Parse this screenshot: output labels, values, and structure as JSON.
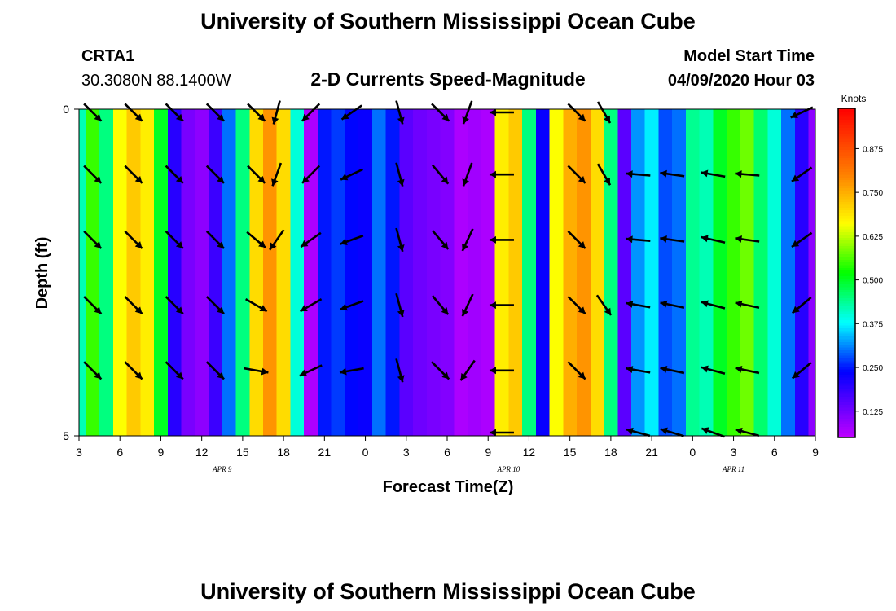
{
  "header": {
    "title": "University of Southern Mississippi Ocean Cube",
    "station": "CRTA1",
    "coords": "30.3080N 88.1400W",
    "product": "2-D Currents Speed-Magnitude",
    "model_label": "Model Start Time",
    "model_time": "04/09/2020 Hour 03"
  },
  "footer": {
    "title": "University of Southern Mississippi Ocean Cube"
  },
  "chart_data": {
    "type": "heatmap",
    "title": "2-D Currents Speed-Magnitude",
    "xlabel": "Forecast Time(Z)",
    "ylabel": "Depth (ft)",
    "units": "Knots",
    "x_hours": [
      3,
      4,
      5,
      6,
      7,
      8,
      9,
      10,
      11,
      12,
      13,
      14,
      15,
      16,
      17,
      18,
      19,
      20,
      21,
      22,
      23,
      24,
      25,
      26,
      27,
      28,
      29,
      30,
      31,
      32,
      33,
      34,
      35,
      36,
      37,
      38,
      39,
      40,
      41,
      42,
      43,
      44,
      45,
      46,
      47,
      48,
      49,
      50,
      51,
      52,
      53,
      54,
      55,
      56,
      57
    ],
    "xlim": [
      3,
      57
    ],
    "x_ticks": [
      3,
      6,
      9,
      12,
      15,
      18,
      21,
      24,
      27,
      30,
      33,
      36,
      39,
      42,
      45,
      48,
      51,
      54,
      57
    ],
    "x_tick_labels": [
      "3",
      "6",
      "9",
      "12",
      "15",
      "18",
      "21",
      "0",
      "3",
      "6",
      "9",
      "12",
      "15",
      "18",
      "21",
      "0",
      "3",
      "6",
      "9"
    ],
    "date_labels": [
      {
        "hour": 13.5,
        "text": "APR 9"
      },
      {
        "hour": 34.5,
        "text": "APR 10"
      },
      {
        "hour": 51,
        "text": "APR 11"
      }
    ],
    "ylim": [
      0,
      5
    ],
    "y_ticks": [
      0,
      5
    ],
    "speed_knots": [
      0.42,
      0.55,
      0.45,
      0.66,
      0.72,
      0.68,
      0.5,
      0.2,
      0.12,
      0.1,
      0.18,
      0.3,
      0.45,
      0.7,
      0.78,
      0.7,
      0.4,
      0.07,
      0.25,
      0.27,
      0.24,
      0.23,
      0.3,
      0.25,
      0.15,
      0.13,
      0.12,
      0.11,
      0.07,
      0.08,
      0.07,
      0.68,
      0.72,
      0.45,
      0.23,
      0.66,
      0.75,
      0.78,
      0.7,
      0.45,
      0.15,
      0.32,
      0.37,
      0.28,
      0.3,
      0.44,
      0.42,
      0.5,
      0.55,
      0.58,
      0.46,
      0.4,
      0.3,
      0.2,
      0.1
    ],
    "colorbar": {
      "label": "Knots",
      "range": [
        0.05,
        0.99
      ],
      "ticks": [
        0.125,
        0.25,
        0.375,
        0.5,
        0.625,
        0.75,
        0.875
      ],
      "tick_labels": [
        "0.125",
        "0.250",
        "0.375",
        "0.500",
        "0.625",
        "0.750",
        "0.875"
      ]
    },
    "arrows": {
      "depths": [
        0,
        1,
        2,
        3,
        4,
        5
      ],
      "columns": [
        {
          "hour": 4,
          "dir": [
            315,
            315,
            315,
            315,
            315,
            -1
          ]
        },
        {
          "hour": 7,
          "dir": [
            315,
            315,
            315,
            315,
            315,
            -1
          ]
        },
        {
          "hour": 10,
          "dir": [
            315,
            315,
            315,
            315,
            315,
            -1
          ]
        },
        {
          "hour": 13,
          "dir": [
            315,
            315,
            315,
            315,
            315,
            -1
          ]
        },
        {
          "hour": 16,
          "dir": [
            315,
            315,
            320,
            330,
            350,
            -1
          ]
        },
        {
          "hour": 17.5,
          "dir": [
            255,
            250,
            235,
            -1,
            -1,
            -1
          ]
        },
        {
          "hour": 20,
          "dir": [
            225,
            225,
            215,
            210,
            205,
            -1
          ]
        },
        {
          "hour": 23,
          "dir": [
            215,
            205,
            200,
            200,
            190,
            -1
          ]
        },
        {
          "hour": 26.5,
          "dir": [
            285,
            285,
            285,
            285,
            285,
            -1
          ]
        },
        {
          "hour": 29.5,
          "dir": [
            315,
            310,
            310,
            310,
            315,
            -1
          ]
        },
        {
          "hour": 31.5,
          "dir": [
            250,
            250,
            245,
            245,
            235,
            -1
          ]
        },
        {
          "hour": 34,
          "dir": [
            180,
            180,
            180,
            180,
            180,
            180
          ]
        },
        {
          "hour": 39.5,
          "dir": [
            315,
            315,
            315,
            315,
            315,
            -1
          ]
        },
        {
          "hour": 41.5,
          "dir": [
            300,
            300,
            -1,
            305,
            -1,
            -1
          ]
        },
        {
          "hour": 44,
          "dir": [
            -1,
            175,
            175,
            170,
            170,
            165
          ]
        },
        {
          "hour": 46.5,
          "dir": [
            -1,
            172,
            172,
            168,
            168,
            163
          ]
        },
        {
          "hour": 49.5,
          "dir": [
            -1,
            170,
            167,
            165,
            165,
            160
          ]
        },
        {
          "hour": 52,
          "dir": [
            -1,
            175,
            172,
            168,
            168,
            165
          ]
        },
        {
          "hour": 56,
          "dir": [
            205,
            215,
            215,
            220,
            220,
            -1
          ]
        }
      ]
    }
  }
}
